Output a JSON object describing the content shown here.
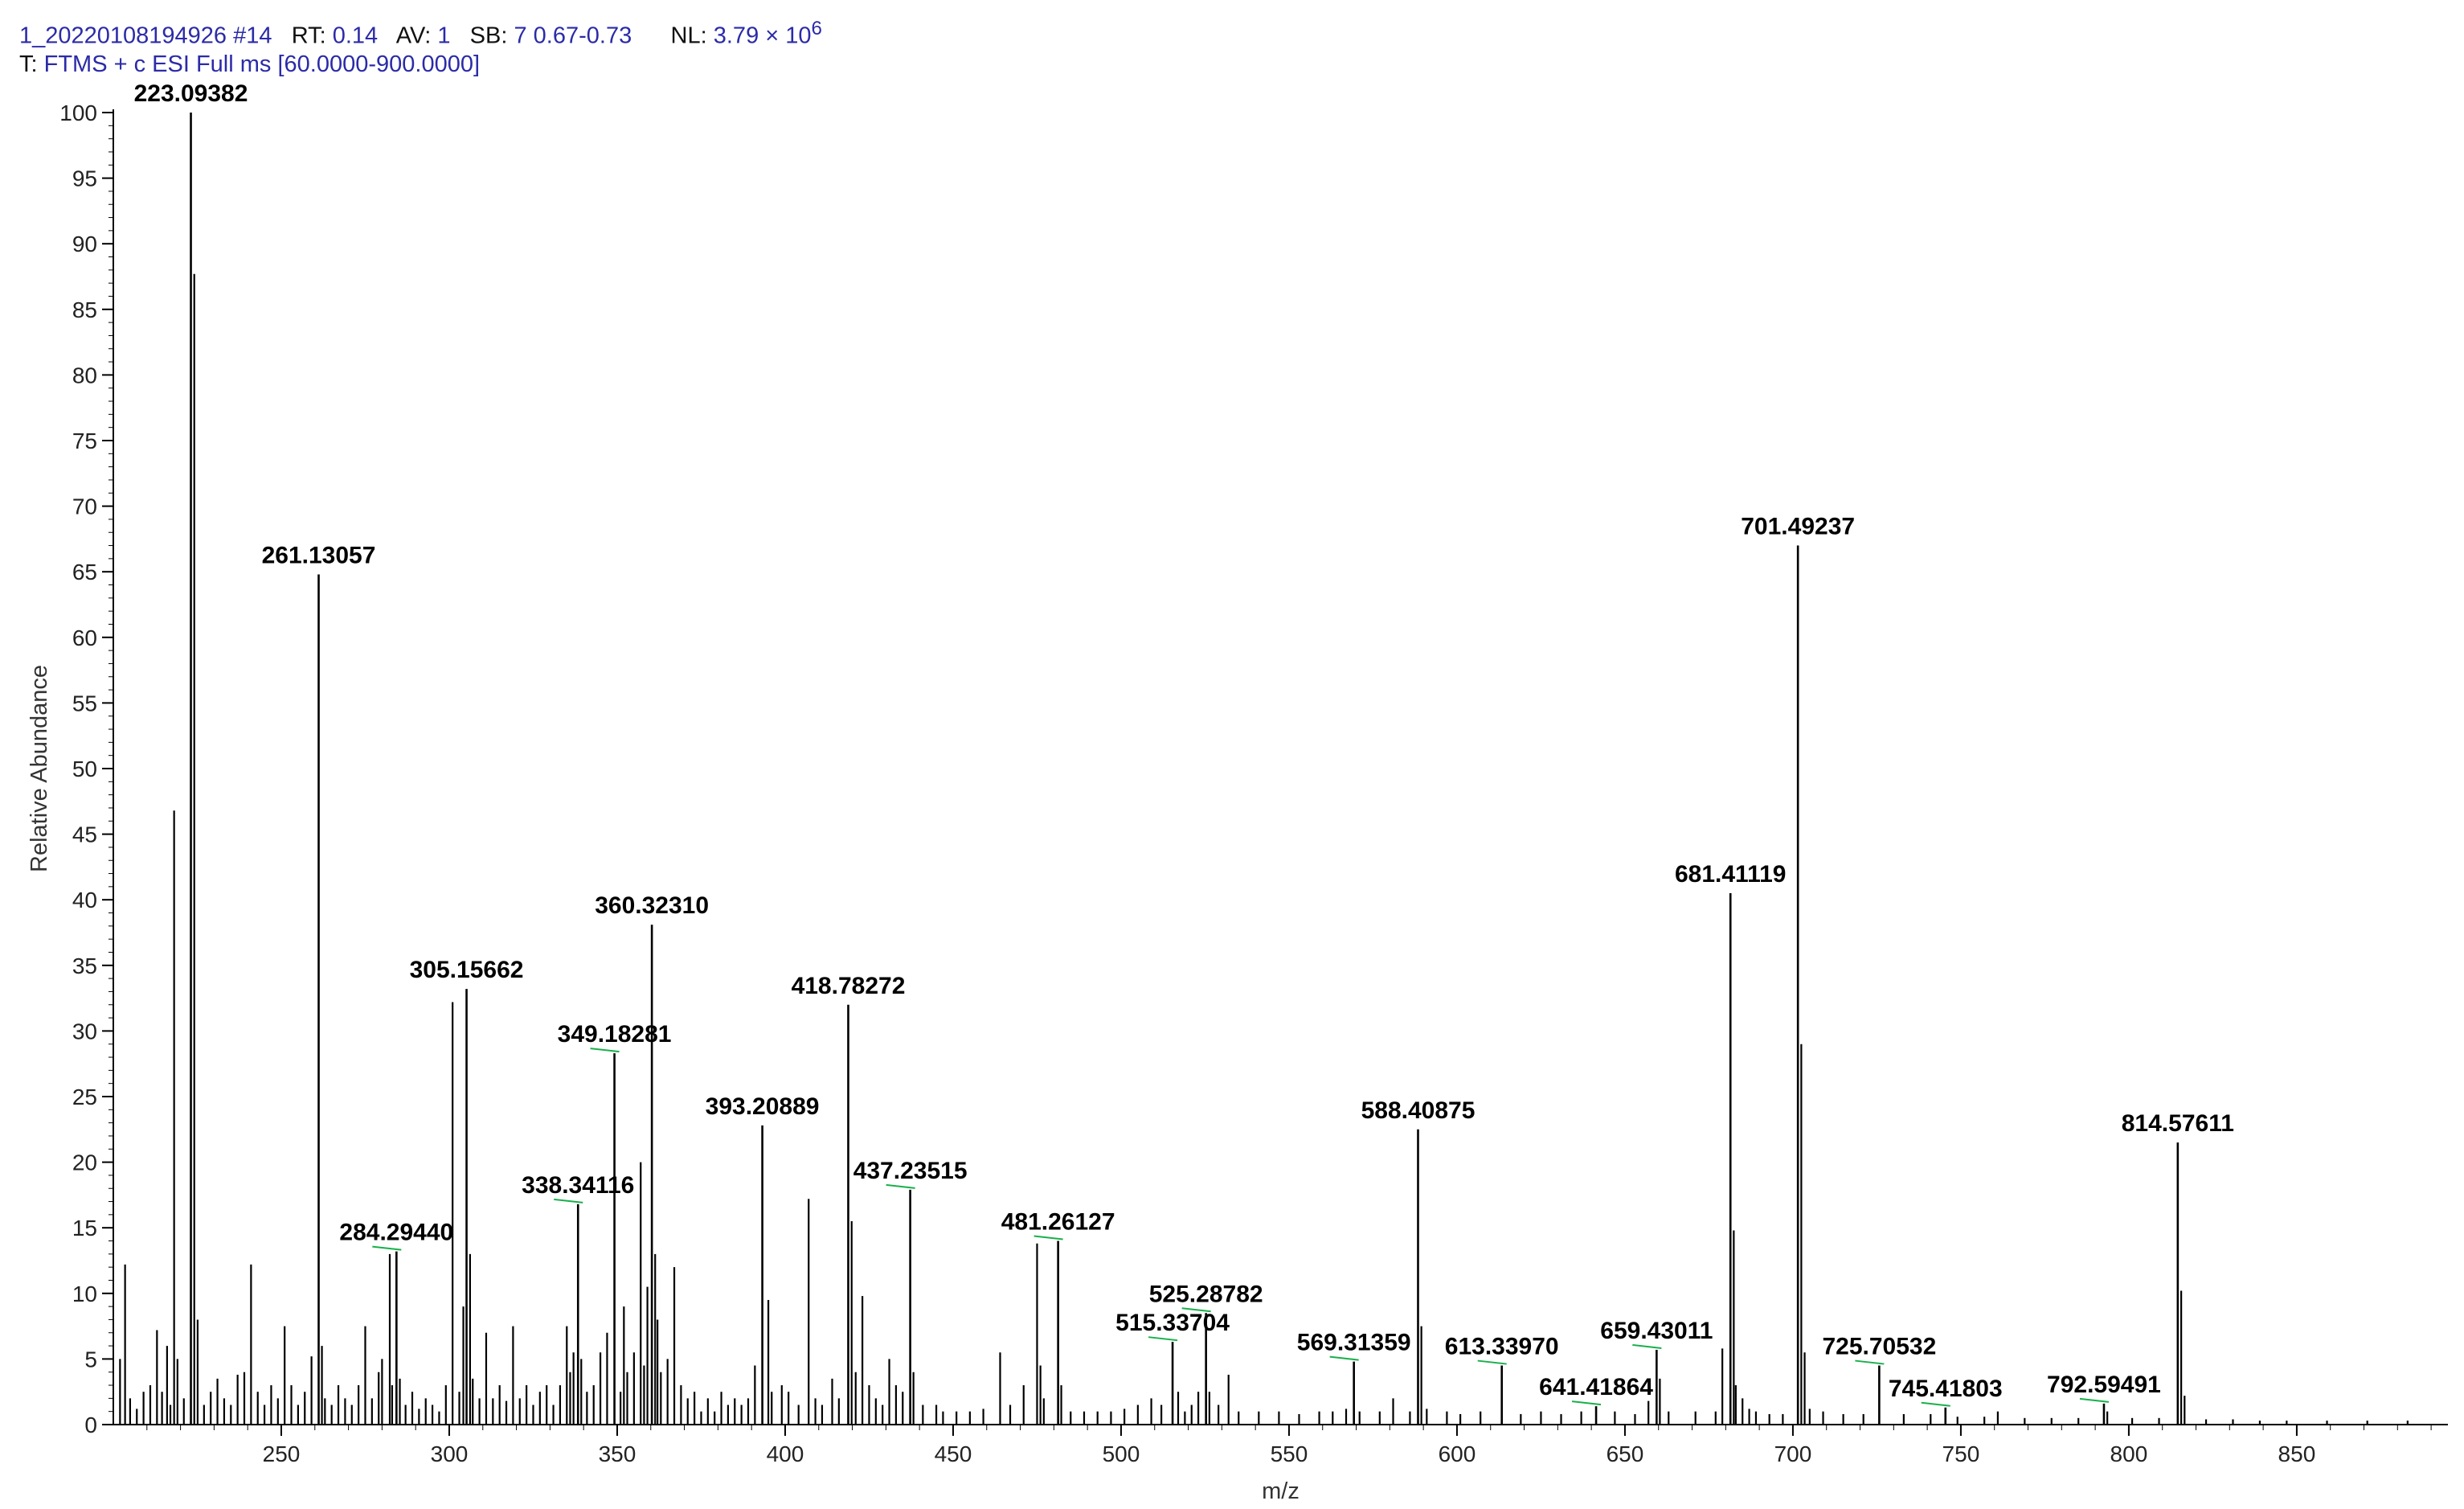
{
  "header": {
    "filename": "1_20220108194926",
    "scan": "#14",
    "rt_label": "RT:",
    "rt": "0.14",
    "av_label": "AV:",
    "av": "1",
    "sb_label": "SB:",
    "sb": "7 0.67-0.73",
    "nl_label": "NL:",
    "nl_value": "3.79 × 10",
    "nl_exp": "6",
    "filter_label": "T:",
    "filter": "FTMS + c ESI Full ms [60.0000-900.0000]"
  },
  "colors": {
    "header_text": "#2b2ba8",
    "spectrum": "#000000",
    "label_link": "#18b04a"
  },
  "chart_data": {
    "type": "bar",
    "subtype": "mass spectrum (stick plot)",
    "xlabel": "m/z",
    "ylabel": "Relative Abundance",
    "xlim": [
      200,
      895
    ],
    "ylim": [
      0,
      100
    ],
    "xticks": [
      250,
      300,
      350,
      400,
      450,
      500,
      550,
      600,
      650,
      700,
      750,
      800,
      850
    ],
    "yticks": [
      0,
      5,
      10,
      15,
      20,
      25,
      30,
      35,
      40,
      45,
      50,
      55,
      60,
      65,
      70,
      75,
      80,
      85,
      90,
      95,
      100
    ],
    "grid": false,
    "labeled_peaks": [
      {
        "mz": 223.09382,
        "label": "223.09382",
        "intensity": 100
      },
      {
        "mz": 261.13057,
        "label": "261.13057",
        "intensity": 64.8
      },
      {
        "mz": 284.2944,
        "label": "284.29440",
        "intensity": 13.2
      },
      {
        "mz": 305.15662,
        "label": "305.15662",
        "intensity": 33.2
      },
      {
        "mz": 338.34116,
        "label": "338.34116",
        "intensity": 16.8
      },
      {
        "mz": 349.18281,
        "label": "349.18281",
        "intensity": 28.3
      },
      {
        "mz": 360.3231,
        "label": "360.32310",
        "intensity": 38.1
      },
      {
        "mz": 393.20889,
        "label": "393.20889",
        "intensity": 22.8
      },
      {
        "mz": 418.78272,
        "label": "418.78272",
        "intensity": 32.0
      },
      {
        "mz": 437.23515,
        "label": "437.23515",
        "intensity": 17.9
      },
      {
        "mz": 481.26127,
        "label": "481.26127",
        "intensity": 14.0
      },
      {
        "mz": 515.33704,
        "label": "515.33704",
        "intensity": 6.3
      },
      {
        "mz": 525.28782,
        "label": "525.28782",
        "intensity": 8.5
      },
      {
        "mz": 569.31359,
        "label": "569.31359",
        "intensity": 4.8
      },
      {
        "mz": 588.40875,
        "label": "588.40875",
        "intensity": 22.5
      },
      {
        "mz": 613.3397,
        "label": "613.33970",
        "intensity": 4.5
      },
      {
        "mz": 641.41864,
        "label": "641.41864",
        "intensity": 1.4
      },
      {
        "mz": 659.43011,
        "label": "659.43011",
        "intensity": 5.7
      },
      {
        "mz": 681.41119,
        "label": "681.41119",
        "intensity": 40.5
      },
      {
        "mz": 701.49237,
        "label": "701.49237",
        "intensity": 67.0
      },
      {
        "mz": 725.70532,
        "label": "725.70532",
        "intensity": 4.5
      },
      {
        "mz": 745.41803,
        "label": "745.41803",
        "intensity": 1.3
      },
      {
        "mz": 792.59491,
        "label": "792.59491",
        "intensity": 1.6
      },
      {
        "mz": 814.57611,
        "label": "814.57611",
        "intensity": 21.5
      }
    ],
    "minor_peaks": [
      [
        202.0,
        5.0
      ],
      [
        203.5,
        12.2
      ],
      [
        205.0,
        2.0
      ],
      [
        207.0,
        1.2
      ],
      [
        209.0,
        2.5
      ],
      [
        211.0,
        3.0
      ],
      [
        213.0,
        7.2
      ],
      [
        214.5,
        2.5
      ],
      [
        216.0,
        6.0
      ],
      [
        217.0,
        1.5
      ],
      [
        218.1,
        46.8
      ],
      [
        219.1,
        5.0
      ],
      [
        221.0,
        2.0
      ],
      [
        224.1,
        87.7
      ],
      [
        225.1,
        8.0
      ],
      [
        227.0,
        1.5
      ],
      [
        229.0,
        2.5
      ],
      [
        231.0,
        3.5
      ],
      [
        233.0,
        2.0
      ],
      [
        235.0,
        1.5
      ],
      [
        237.0,
        3.8
      ],
      [
        239.0,
        4.0
      ],
      [
        241.0,
        12.2
      ],
      [
        243.0,
        2.5
      ],
      [
        245.0,
        1.5
      ],
      [
        247.0,
        3.0
      ],
      [
        249.0,
        2.0
      ],
      [
        251.0,
        7.5
      ],
      [
        253.0,
        3.0
      ],
      [
        255.0,
        1.5
      ],
      [
        257.0,
        2.5
      ],
      [
        259.0,
        5.2
      ],
      [
        262.1,
        6.0
      ],
      [
        263.0,
        2.0
      ],
      [
        265.0,
        1.5
      ],
      [
        267.0,
        3.0
      ],
      [
        269.0,
        2.0
      ],
      [
        271.0,
        1.5
      ],
      [
        273.0,
        3.0
      ],
      [
        275.0,
        7.5
      ],
      [
        277.0,
        2.0
      ],
      [
        279.0,
        4.0
      ],
      [
        280.0,
        5.0
      ],
      [
        282.3,
        13.0
      ],
      [
        283.0,
        3.0
      ],
      [
        285.3,
        3.5
      ],
      [
        287.0,
        1.5
      ],
      [
        289.0,
        2.5
      ],
      [
        291.0,
        1.2
      ],
      [
        293.0,
        2.0
      ],
      [
        295.0,
        1.5
      ],
      [
        297.0,
        1.0
      ],
      [
        299.0,
        3.0
      ],
      [
        301.0,
        32.2
      ],
      [
        303.0,
        2.5
      ],
      [
        304.2,
        9.0
      ],
      [
        306.2,
        13.0
      ],
      [
        307.0,
        3.5
      ],
      [
        309.0,
        2.0
      ],
      [
        311.0,
        7.0
      ],
      [
        313.0,
        2.0
      ],
      [
        315.0,
        3.0
      ],
      [
        317.0,
        1.8
      ],
      [
        319.0,
        7.5
      ],
      [
        321.0,
        2.0
      ],
      [
        323.0,
        3.0
      ],
      [
        325.0,
        1.5
      ],
      [
        327.0,
        2.5
      ],
      [
        329.0,
        3.0
      ],
      [
        331.0,
        1.5
      ],
      [
        333.0,
        3.0
      ],
      [
        335.0,
        7.5
      ],
      [
        336.0,
        4.0
      ],
      [
        337.0,
        5.5
      ],
      [
        339.3,
        5.0
      ],
      [
        341.0,
        2.5
      ],
      [
        343.0,
        3.0
      ],
      [
        345.0,
        5.5
      ],
      [
        347.0,
        7.0
      ],
      [
        351.0,
        2.5
      ],
      [
        352.0,
        9.0
      ],
      [
        353.0,
        4.0
      ],
      [
        355.0,
        5.5
      ],
      [
        357.0,
        20.0
      ],
      [
        358.0,
        4.5
      ],
      [
        359.0,
        10.5
      ],
      [
        361.3,
        13.0
      ],
      [
        362.0,
        8.0
      ],
      [
        363.0,
        4.0
      ],
      [
        365.0,
        5.0
      ],
      [
        367.0,
        12.0
      ],
      [
        369.0,
        3.0
      ],
      [
        371.0,
        2.0
      ],
      [
        373.0,
        2.5
      ],
      [
        375.0,
        1.0
      ],
      [
        377.0,
        2.0
      ],
      [
        379.0,
        1.0
      ],
      [
        381.0,
        2.5
      ],
      [
        383.0,
        1.5
      ],
      [
        385.0,
        2.0
      ],
      [
        387.0,
        1.5
      ],
      [
        389.0,
        2.0
      ],
      [
        391.0,
        4.5
      ],
      [
        395.0,
        9.5
      ],
      [
        396.0,
        2.5
      ],
      [
        399.0,
        3.0
      ],
      [
        401.0,
        2.5
      ],
      [
        404.0,
        1.5
      ],
      [
        407.0,
        17.2
      ],
      [
        409.0,
        2.0
      ],
      [
        411.0,
        1.5
      ],
      [
        414.0,
        3.5
      ],
      [
        416.0,
        2.0
      ],
      [
        419.8,
        15.5
      ],
      [
        421.0,
        4.0
      ],
      [
        423.0,
        9.8
      ],
      [
        425.0,
        3.0
      ],
      [
        427.0,
        2.0
      ],
      [
        429.0,
        1.5
      ],
      [
        431.0,
        5.0
      ],
      [
        433.0,
        3.0
      ],
      [
        435.0,
        2.5
      ],
      [
        438.2,
        4.0
      ],
      [
        441.0,
        1.5
      ],
      [
        445.0,
        1.5
      ],
      [
        447.0,
        1.0
      ],
      [
        451.0,
        1.0
      ],
      [
        455.0,
        1.0
      ],
      [
        459.0,
        1.2
      ],
      [
        464.0,
        5.5
      ],
      [
        467.0,
        1.5
      ],
      [
        471.0,
        3.0
      ],
      [
        475.0,
        13.8
      ],
      [
        476.0,
        4.5
      ],
      [
        477.0,
        2.0
      ],
      [
        482.2,
        3.0
      ],
      [
        485.0,
        1.0
      ],
      [
        489.0,
        1.0
      ],
      [
        493.0,
        1.0
      ],
      [
        497.0,
        1.0
      ],
      [
        501.0,
        1.2
      ],
      [
        505.0,
        1.5
      ],
      [
        509.0,
        2.0
      ],
      [
        512.0,
        1.5
      ],
      [
        517.0,
        2.5
      ],
      [
        519.0,
        1.0
      ],
      [
        521.0,
        1.5
      ],
      [
        523.0,
        2.5
      ],
      [
        526.3,
        2.5
      ],
      [
        529.0,
        1.5
      ],
      [
        532.0,
        3.8
      ],
      [
        535.0,
        1.0
      ],
      [
        541.0,
        1.0
      ],
      [
        547.0,
        1.0
      ],
      [
        553.0,
        0.8
      ],
      [
        559.0,
        1.0
      ],
      [
        563.0,
        1.0
      ],
      [
        567.0,
        1.2
      ],
      [
        571.0,
        1.0
      ],
      [
        577.0,
        1.0
      ],
      [
        581.0,
        2.0
      ],
      [
        586.0,
        1.0
      ],
      [
        589.4,
        7.5
      ],
      [
        591.0,
        1.2
      ],
      [
        597.0,
        1.0
      ],
      [
        601.0,
        0.8
      ],
      [
        607.0,
        1.0
      ],
      [
        619.0,
        0.8
      ],
      [
        625.0,
        1.0
      ],
      [
        631.0,
        0.8
      ],
      [
        637.0,
        1.0
      ],
      [
        647.0,
        1.0
      ],
      [
        653.0,
        0.8
      ],
      [
        657.0,
        1.8
      ],
      [
        660.4,
        3.5
      ],
      [
        663.0,
        1.0
      ],
      [
        671.0,
        1.0
      ],
      [
        677.0,
        1.0
      ],
      [
        679.0,
        5.8
      ],
      [
        682.4,
        14.8
      ],
      [
        683.0,
        3.0
      ],
      [
        685.0,
        2.0
      ],
      [
        687.0,
        1.2
      ],
      [
        689.0,
        1.0
      ],
      [
        693.0,
        0.8
      ],
      [
        697.0,
        0.8
      ],
      [
        702.5,
        29.0
      ],
      [
        703.5,
        5.5
      ],
      [
        705.0,
        1.2
      ],
      [
        709.0,
        1.0
      ],
      [
        715.0,
        0.8
      ],
      [
        721.0,
        0.8
      ],
      [
        733.0,
        0.8
      ],
      [
        741.0,
        0.8
      ],
      [
        749.0,
        0.6
      ],
      [
        757.0,
        0.6
      ],
      [
        761.0,
        1.0
      ],
      [
        769.0,
        0.5
      ],
      [
        777.0,
        0.5
      ],
      [
        785.0,
        0.5
      ],
      [
        793.6,
        1.0
      ],
      [
        801.0,
        0.5
      ],
      [
        809.0,
        0.5
      ],
      [
        815.6,
        10.2
      ],
      [
        816.6,
        2.2
      ],
      [
        823.0,
        0.4
      ],
      [
        831.0,
        0.4
      ],
      [
        839.0,
        0.3
      ],
      [
        847.0,
        0.3
      ],
      [
        859.0,
        0.3
      ],
      [
        871.0,
        0.3
      ],
      [
        883.0,
        0.3
      ]
    ]
  }
}
